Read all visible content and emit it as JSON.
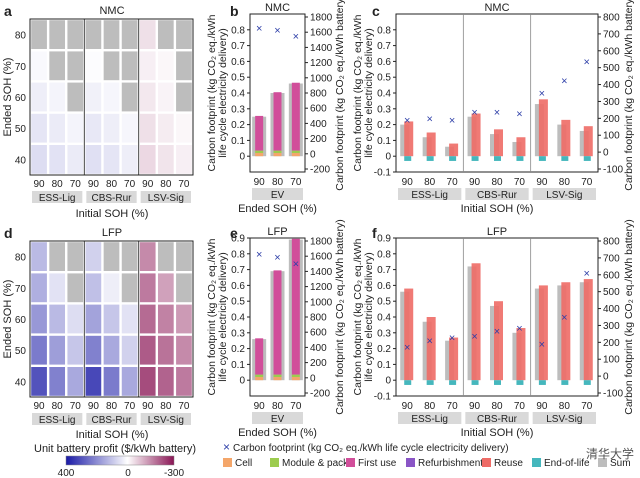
{
  "figure": {
    "panel_letters": [
      "a",
      "b",
      "c",
      "d",
      "e",
      "f"
    ],
    "row_titles": {
      "top": "NMC",
      "bottom": "LFP"
    },
    "heatmap_ylabel": "Ended SOH (%)",
    "heatmap_xlabel": "Initial SOH (%)",
    "bar_left_ylabel_line1": "Carbon footprint (kg CO₂ eq./kWh",
    "bar_left_ylabel_line2": "life cycle electricity delivery)",
    "bar_right_ylabel": "Carbon footprint (kg CO₂ eq./kWh battery)",
    "ev_xlabel": "Ended SOH (%)",
    "grouped_xlabel": "Initial SOH (%)",
    "soh_ticks": [
      "90",
      "80",
      "70"
    ],
    "group_labels": [
      "ESS-Lig",
      "CBS-Rur",
      "LSV-Sig"
    ],
    "ev_label": "EV",
    "heat_yticks": [
      "80",
      "70",
      "60",
      "50",
      "40"
    ],
    "colorbar_title": "Unit battery profit ($/kWh battery)",
    "colorbar_ticks": [
      "400",
      "0",
      "-300"
    ],
    "colors": {
      "cell": "#f4a66a",
      "module": "#9ccc4e",
      "first_use": "#d14e9a",
      "refurb": "#8a55c6",
      "reuse": "#ee6b66",
      "eol": "#45b7bd",
      "sum": "#bdbdbd",
      "marker": "#2e3fa8"
    },
    "watermark": "清华大学",
    "legend": {
      "marker": "Carbon footprint (kg CO₂ eq./kWh life cycle electricity delivery)",
      "items": [
        {
          "key": "cell",
          "label": "Cell"
        },
        {
          "key": "module",
          "label": "Module & pack"
        },
        {
          "key": "first_use",
          "label": "First use"
        },
        {
          "key": "refurb",
          "label": "Refurbishment"
        },
        {
          "key": "reuse",
          "label": "Reuse"
        },
        {
          "key": "eol",
          "label": "End-of-life"
        },
        {
          "key": "sum",
          "label": "Sum"
        }
      ]
    }
  },
  "chart_data": [
    {
      "id": "a",
      "type": "heatmap",
      "title": "NMC",
      "x_groups": [
        "ESS-Lig",
        "CBS-Rur",
        "LSV-Sig"
      ],
      "x_ticks": [
        "90",
        "80",
        "70"
      ],
      "y_ticks": [
        "80",
        "70",
        "60",
        "50",
        "40"
      ],
      "colorbar": {
        "min": -300,
        "max": 400
      },
      "values": [
        [
          null,
          null,
          null,
          null,
          null,
          null,
          -40,
          null,
          null
        ],
        [
          10,
          null,
          null,
          5,
          null,
          null,
          -20,
          -10,
          null
        ],
        [
          30,
          20,
          null,
          25,
          15,
          null,
          -30,
          -15,
          null
        ],
        [
          45,
          35,
          20,
          40,
          30,
          15,
          -40,
          -25,
          -10
        ],
        [
          60,
          50,
          35,
          55,
          45,
          30,
          -50,
          -35,
          -20
        ]
      ]
    },
    {
      "id": "b",
      "type": "bar",
      "title": "NMC",
      "categories": [
        "90",
        "80",
        "70"
      ],
      "group": "EV",
      "ylim_left": [
        -0.1,
        0.9
      ],
      "ylim_right": [
        -200,
        1800
      ],
      "left_ticks": [
        "0",
        "0.1",
        "0.2",
        "0.3",
        "0.4",
        "0.5",
        "0.6",
        "0.7",
        "0.8"
      ],
      "right_ticks": [
        "-200",
        "0",
        "200",
        "400",
        "600",
        "800",
        "1000",
        "1200",
        "1400",
        "1600",
        "1800"
      ],
      "bars": [
        {
          "cell": 0.02,
          "module": 0.015,
          "first_use": 0.22,
          "sum": 0.25
        },
        {
          "cell": 0.02,
          "module": 0.015,
          "first_use": 0.37,
          "sum": 0.4
        },
        {
          "cell": 0.02,
          "module": 0.015,
          "first_use": 0.43,
          "sum": 0.46
        }
      ],
      "markers": [
        0.81,
        0.8,
        0.76
      ]
    },
    {
      "id": "c",
      "type": "bar",
      "title": "NMC",
      "groups": [
        "ESS-Lig",
        "CBS-Rur",
        "LSV-Sig"
      ],
      "categories": [
        "90",
        "80",
        "70"
      ],
      "ylim_left": [
        -0.1,
        0.9
      ],
      "ylim_right": [
        -100,
        800
      ],
      "left_ticks": [
        "-0.1",
        "0",
        "0.1",
        "0.2",
        "0.3",
        "0.4",
        "0.5",
        "0.6",
        "0.7",
        "0.8"
      ],
      "right_ticks": [
        "-100",
        "0",
        "100",
        "200",
        "300",
        "400",
        "500",
        "600",
        "700",
        "800"
      ],
      "reuse": [
        0.22,
        0.15,
        0.08,
        0.27,
        0.17,
        0.12,
        0.36,
        0.23,
        0.19
      ],
      "sum": [
        0.2,
        0.12,
        0.06,
        0.25,
        0.14,
        0.09,
        0.33,
        0.2,
        0.16
      ],
      "eol": -0.03,
      "markers": [
        0.23,
        0.24,
        0.23,
        0.28,
        0.28,
        0.27,
        0.4,
        0.48,
        0.6
      ]
    },
    {
      "id": "d",
      "type": "heatmap",
      "title": "LFP",
      "x_groups": [
        "ESS-Lig",
        "CBS-Rur",
        "LSV-Sig"
      ],
      "x_ticks": [
        "90",
        "80",
        "70"
      ],
      "y_ticks": [
        "80",
        "70",
        "60",
        "50",
        "40"
      ],
      "colorbar": {
        "min": -300,
        "max": 400
      },
      "values": [
        [
          120,
          null,
          null,
          80,
          null,
          null,
          -150,
          null,
          null
        ],
        [
          140,
          50,
          null,
          110,
          30,
          null,
          -170,
          -120,
          null
        ],
        [
          180,
          120,
          60,
          160,
          100,
          50,
          -190,
          -160,
          -130
        ],
        [
          230,
          170,
          100,
          220,
          150,
          80,
          -210,
          -180,
          -150
        ],
        [
          300,
          220,
          150,
          320,
          230,
          150,
          -230,
          -200,
          -170
        ]
      ]
    },
    {
      "id": "e",
      "type": "bar",
      "title": "LFP",
      "categories": [
        "90",
        "80",
        "70"
      ],
      "group": "EV",
      "ylim_left": [
        -0.1,
        0.9
      ],
      "ylim_right": [
        -200,
        1800
      ],
      "left_ticks": [
        "0",
        "0.1",
        "0.2",
        "0.3",
        "0.4",
        "0.5",
        "0.6",
        "0.7",
        "0.8",
        "0.9"
      ],
      "right_ticks": [
        "-200",
        "0",
        "200",
        "400",
        "600",
        "800",
        "1000",
        "1200",
        "1400",
        "1600",
        "1800"
      ],
      "bars": [
        {
          "cell": 0.02,
          "module": 0.015,
          "first_use": 0.23,
          "sum": 0.26
        },
        {
          "cell": 0.02,
          "module": 0.015,
          "first_use": 0.66,
          "sum": 0.69
        },
        {
          "cell": 0.02,
          "module": 0.015,
          "first_use": 0.86,
          "sum": 0.89
        }
      ],
      "markers": [
        0.8,
        0.78,
        0.74
      ]
    },
    {
      "id": "f",
      "type": "bar",
      "title": "LFP",
      "groups": [
        "ESS-Lig",
        "CBS-Rur",
        "LSV-Sig"
      ],
      "categories": [
        "90",
        "80",
        "70"
      ],
      "ylim_left": [
        -0.1,
        0.9
      ],
      "ylim_right": [
        -100,
        800
      ],
      "left_ticks": [
        "-0.1",
        "0",
        "0.1",
        "0.2",
        "0.3",
        "0.4",
        "0.5",
        "0.6",
        "0.7",
        "0.8",
        "0.9"
      ],
      "right_ticks": [
        "-100",
        "0",
        "100",
        "200",
        "300",
        "400",
        "500",
        "600",
        "700",
        "800"
      ],
      "reuse": [
        0.58,
        0.4,
        0.27,
        0.74,
        0.5,
        0.33,
        0.6,
        0.62,
        0.64
      ],
      "sum": [
        0.56,
        0.37,
        0.25,
        0.72,
        0.47,
        0.3,
        0.58,
        0.6,
        0.62
      ],
      "eol": -0.03,
      "markers": [
        0.21,
        0.25,
        0.27,
        0.28,
        0.31,
        0.33,
        0.23,
        0.4,
        0.68
      ]
    }
  ]
}
